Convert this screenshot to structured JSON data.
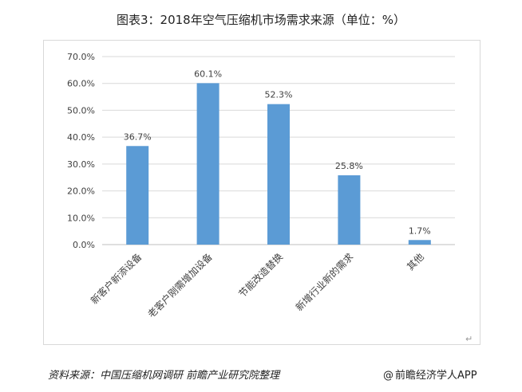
{
  "title": "图表3：2018年空气压缩机市场需求来源（单位：%）",
  "source": "资料来源：中国压缩机网调研 前瞻产业研究院整理",
  "brand": {
    "at": "@",
    "name": "前瞻经济学人APP"
  },
  "return_mark": "↵",
  "colors": {
    "bar": "#5b9bd5",
    "grid": "#d9d9d9",
    "axis": "#bfbfbf",
    "text": "#404040"
  },
  "chart_data": {
    "type": "bar",
    "title": "图表3：2018年空气压缩机市场需求来源（单位：%）",
    "categories": [
      "新客户新添设备",
      "老客户刚需增加设备",
      "节能改造替换",
      "新增行业新的需求",
      "其他"
    ],
    "values": [
      36.7,
      60.1,
      52.3,
      25.8,
      1.7
    ],
    "value_labels": [
      "36.7%",
      "60.1%",
      "52.3%",
      "25.8%",
      "1.7%"
    ],
    "ytick_labels": [
      "0.0%",
      "10.0%",
      "20.0%",
      "30.0%",
      "40.0%",
      "50.0%",
      "60.0%",
      "70.0%"
    ],
    "ylim": [
      0,
      70
    ],
    "ystep": 10,
    "grid": true,
    "legend": "none",
    "xlabel": "",
    "ylabel": ""
  }
}
